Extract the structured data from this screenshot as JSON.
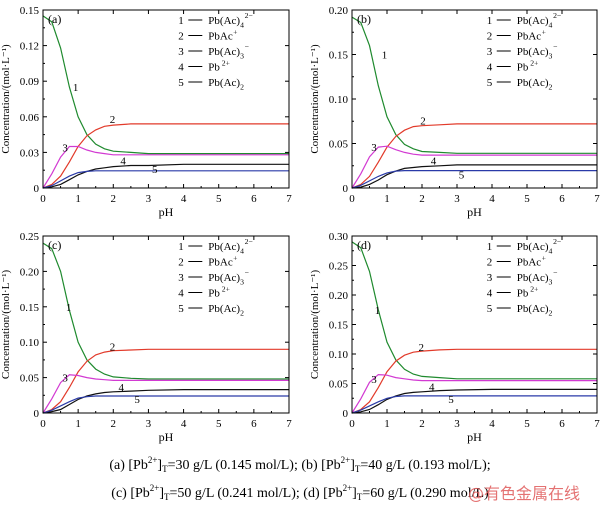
{
  "chart_data": [
    {
      "type": "line",
      "panel": "(a)",
      "xlabel": "pH",
      "ylabel": "Concentration/(mol·L⁻¹)",
      "xlim": [
        0,
        7
      ],
      "ylim": [
        0,
        0.15
      ],
      "xticks": [
        "0",
        "1",
        "2",
        "3",
        "4",
        "5",
        "6",
        "7"
      ],
      "yticks": [
        "0",
        "0.03",
        "0.06",
        "0.09",
        "0.12",
        "0.15"
      ],
      "ytick_values": [
        0,
        0.03,
        0.06,
        0.09,
        0.12,
        0.15
      ],
      "x": [
        0,
        0.25,
        0.5,
        0.75,
        1,
        1.25,
        1.5,
        1.75,
        2,
        2.5,
        3,
        4,
        5,
        6,
        7
      ],
      "series": [
        {
          "name": "Pb(Ac)4 2−",
          "label": "1",
          "color": "#1f8a2e",
          "values": [
            0.145,
            0.14,
            0.118,
            0.085,
            0.06,
            0.045,
            0.037,
            0.033,
            0.031,
            0.03,
            0.029,
            0.029,
            0.029,
            0.029,
            0.029
          ]
        },
        {
          "name": "PbAc+",
          "label": "2",
          "color": "#e23a2a",
          "values": [
            0,
            0.003,
            0.01,
            0.022,
            0.035,
            0.044,
            0.049,
            0.052,
            0.053,
            0.054,
            0.054,
            0.054,
            0.054,
            0.054,
            0.054
          ]
        },
        {
          "name": "Pb(Ac)3−",
          "label": "3",
          "color": "#d23ad2",
          "values": [
            0,
            0.012,
            0.026,
            0.035,
            0.035,
            0.032,
            0.03,
            0.029,
            0.028,
            0.028,
            0.028,
            0.028,
            0.028,
            0.028,
            0.028
          ]
        },
        {
          "name": "Pb2+",
          "label": "4",
          "color": "#111111",
          "values": [
            0,
            0.001,
            0.003,
            0.007,
            0.011,
            0.014,
            0.016,
            0.017,
            0.018,
            0.019,
            0.019,
            0.02,
            0.02,
            0.02,
            0.02
          ]
        },
        {
          "name": "Pb(Ac)2",
          "label": "5",
          "color": "#2a3aa8",
          "values": [
            0,
            0.002,
            0.006,
            0.01,
            0.013,
            0.014,
            0.0145,
            0.0145,
            0.0145,
            0.0145,
            0.0145,
            0.0145,
            0.0145,
            0.0145,
            0.0145
          ]
        }
      ]
    },
    {
      "type": "line",
      "panel": "(b)",
      "xlabel": "pH",
      "ylabel": "Concentration/(mol·L⁻¹)",
      "xlim": [
        0,
        7
      ],
      "ylim": [
        0,
        0.2
      ],
      "xticks": [
        "0",
        "1",
        "2",
        "3",
        "4",
        "5",
        "6",
        "7"
      ],
      "yticks": [
        "0",
        "0.05",
        "0.10",
        "0.15",
        "0.20"
      ],
      "ytick_values": [
        0,
        0.05,
        0.1,
        0.15,
        0.2
      ],
      "x": [
        0,
        0.25,
        0.5,
        0.75,
        1,
        1.25,
        1.5,
        1.75,
        2,
        2.5,
        3,
        4,
        5,
        6,
        7
      ],
      "series": [
        {
          "name": "Pb(Ac)4 2−",
          "label": "1",
          "color": "#1f8a2e",
          "values": [
            0.192,
            0.186,
            0.16,
            0.115,
            0.08,
            0.06,
            0.049,
            0.044,
            0.041,
            0.04,
            0.039,
            0.039,
            0.039,
            0.039,
            0.039
          ]
        },
        {
          "name": "PbAc+",
          "label": "2",
          "color": "#e23a2a",
          "values": [
            0,
            0.004,
            0.013,
            0.029,
            0.046,
            0.058,
            0.065,
            0.069,
            0.07,
            0.071,
            0.072,
            0.072,
            0.072,
            0.072,
            0.072
          ]
        },
        {
          "name": "Pb(Ac)3−",
          "label": "3",
          "color": "#d23ad2",
          "values": [
            0,
            0.016,
            0.035,
            0.046,
            0.047,
            0.043,
            0.04,
            0.038,
            0.037,
            0.037,
            0.037,
            0.037,
            0.037,
            0.037,
            0.037
          ]
        },
        {
          "name": "Pb2+",
          "label": "4",
          "color": "#111111",
          "values": [
            0,
            0.001,
            0.004,
            0.009,
            0.015,
            0.019,
            0.022,
            0.023,
            0.024,
            0.025,
            0.026,
            0.026,
            0.026,
            0.026,
            0.026
          ]
        },
        {
          "name": "Pb(Ac)2",
          "label": "5",
          "color": "#2a3aa8",
          "values": [
            0,
            0.003,
            0.008,
            0.013,
            0.017,
            0.019,
            0.0195,
            0.0195,
            0.0195,
            0.0195,
            0.0195,
            0.0195,
            0.0195,
            0.0195,
            0.0195
          ]
        }
      ]
    },
    {
      "type": "line",
      "panel": "(c)",
      "xlabel": "pH",
      "ylabel": "Concentration/(mol·L⁻¹)",
      "xlim": [
        0,
        7
      ],
      "ylim": [
        0,
        0.25
      ],
      "xticks": [
        "0",
        "1",
        "2",
        "3",
        "4",
        "5",
        "6",
        "7"
      ],
      "yticks": [
        "0",
        "0.05",
        "0.10",
        "0.15",
        "0.20",
        "0.25"
      ],
      "ytick_values": [
        0,
        0.05,
        0.1,
        0.15,
        0.2,
        0.25
      ],
      "x": [
        0,
        0.25,
        0.5,
        0.75,
        1,
        1.25,
        1.5,
        1.75,
        2,
        2.5,
        3,
        4,
        5,
        6,
        7
      ],
      "series": [
        {
          "name": "Pb(Ac)4 2−",
          "label": "1",
          "color": "#1f8a2e",
          "values": [
            0.24,
            0.232,
            0.2,
            0.145,
            0.1,
            0.075,
            0.062,
            0.055,
            0.051,
            0.049,
            0.048,
            0.048,
            0.048,
            0.048,
            0.048
          ]
        },
        {
          "name": "PbAc+",
          "label": "2",
          "color": "#e23a2a",
          "values": [
            0,
            0.005,
            0.016,
            0.036,
            0.058,
            0.073,
            0.082,
            0.086,
            0.088,
            0.089,
            0.09,
            0.09,
            0.09,
            0.09,
            0.09
          ]
        },
        {
          "name": "Pb(Ac)3−",
          "label": "3",
          "color": "#d23ad2",
          "values": [
            0,
            0.02,
            0.043,
            0.054,
            0.053,
            0.05,
            0.048,
            0.047,
            0.046,
            0.046,
            0.046,
            0.046,
            0.046,
            0.046,
            0.046
          ]
        },
        {
          "name": "Pb2+",
          "label": "4",
          "color": "#111111",
          "values": [
            0,
            0.002,
            0.005,
            0.012,
            0.019,
            0.024,
            0.027,
            0.029,
            0.03,
            0.031,
            0.032,
            0.033,
            0.033,
            0.033,
            0.033
          ]
        },
        {
          "name": "Pb(Ac)2",
          "label": "5",
          "color": "#2a3aa8",
          "values": [
            0,
            0.004,
            0.01,
            0.016,
            0.021,
            0.023,
            0.024,
            0.024,
            0.024,
            0.024,
            0.024,
            0.024,
            0.024,
            0.024,
            0.024
          ]
        }
      ]
    },
    {
      "type": "line",
      "panel": "(d)",
      "xlabel": "pH",
      "ylabel": "Concentration/(mol·L⁻¹)",
      "xlim": [
        0,
        7
      ],
      "ylim": [
        0,
        0.3
      ],
      "xticks": [
        "0",
        "1",
        "2",
        "3",
        "4",
        "5",
        "6",
        "7"
      ],
      "yticks": [
        "0",
        "0.05",
        "0.10",
        "0.15",
        "0.20",
        "0.25",
        "0.30"
      ],
      "ytick_values": [
        0,
        0.05,
        0.1,
        0.15,
        0.2,
        0.25,
        0.3
      ],
      "x": [
        0,
        0.25,
        0.5,
        0.75,
        1,
        1.25,
        1.5,
        1.75,
        2,
        2.5,
        3,
        4,
        5,
        6,
        7
      ],
      "series": [
        {
          "name": "Pb(Ac)4 2−",
          "label": "1",
          "color": "#1f8a2e",
          "values": [
            0.29,
            0.28,
            0.24,
            0.175,
            0.12,
            0.09,
            0.074,
            0.066,
            0.062,
            0.06,
            0.058,
            0.058,
            0.058,
            0.058,
            0.058
          ]
        },
        {
          "name": "PbAc+",
          "label": "2",
          "color": "#e23a2a",
          "values": [
            0,
            0.006,
            0.019,
            0.043,
            0.07,
            0.088,
            0.098,
            0.103,
            0.105,
            0.107,
            0.108,
            0.108,
            0.108,
            0.108,
            0.108
          ]
        },
        {
          "name": "Pb(Ac)3−",
          "label": "3",
          "color": "#d23ad2",
          "values": [
            0,
            0.024,
            0.052,
            0.065,
            0.064,
            0.06,
            0.058,
            0.056,
            0.055,
            0.055,
            0.055,
            0.055,
            0.055,
            0.055,
            0.055
          ]
        },
        {
          "name": "Pb2+",
          "label": "4",
          "color": "#111111",
          "values": [
            0,
            0.002,
            0.006,
            0.014,
            0.023,
            0.029,
            0.033,
            0.035,
            0.036,
            0.038,
            0.039,
            0.04,
            0.04,
            0.04,
            0.04
          ]
        },
        {
          "name": "Pb(Ac)2",
          "label": "5",
          "color": "#2a3aa8",
          "values": [
            0,
            0.005,
            0.012,
            0.019,
            0.025,
            0.028,
            0.029,
            0.029,
            0.029,
            0.029,
            0.029,
            0.029,
            0.029,
            0.029,
            0.029
          ]
        }
      ]
    }
  ],
  "legend_names": {
    "s1_base": "Pb(Ac)",
    "s1_sub": "4",
    "s1_sup": "2−",
    "s2_base": "PbAc",
    "s2_sup": "+",
    "s3_base": "Pb(Ac)",
    "s3_sub": "3",
    "s3_sup": "−",
    "s4_base": "Pb",
    "s4_sup": "2+",
    "s5_base": "Pb(Ac)",
    "s5_sub": "2"
  },
  "caption": {
    "line1": {
      "a_label": "(a) [Pb",
      "a_sup": "2+",
      "a_sub": "T",
      "a_value": "=30 g/L (0.145 mol/L);",
      "b_label": " (b) [Pb",
      "b_sup": "2+",
      "b_sub": "T",
      "b_value": "=40 g/L (0.193 mol/L);"
    },
    "line2": {
      "c_label": "(c) [Pb",
      "c_sup": "2+",
      "c_sub": "T",
      "c_value": "=50 g/L (0.241 mol/L);",
      "d_label": " (d) [Pb",
      "d_sup": "2+",
      "d_sub": "T",
      "d_value": "=60 g/L (0.290 mol/L)"
    }
  },
  "watermark": "@有色金属在线"
}
